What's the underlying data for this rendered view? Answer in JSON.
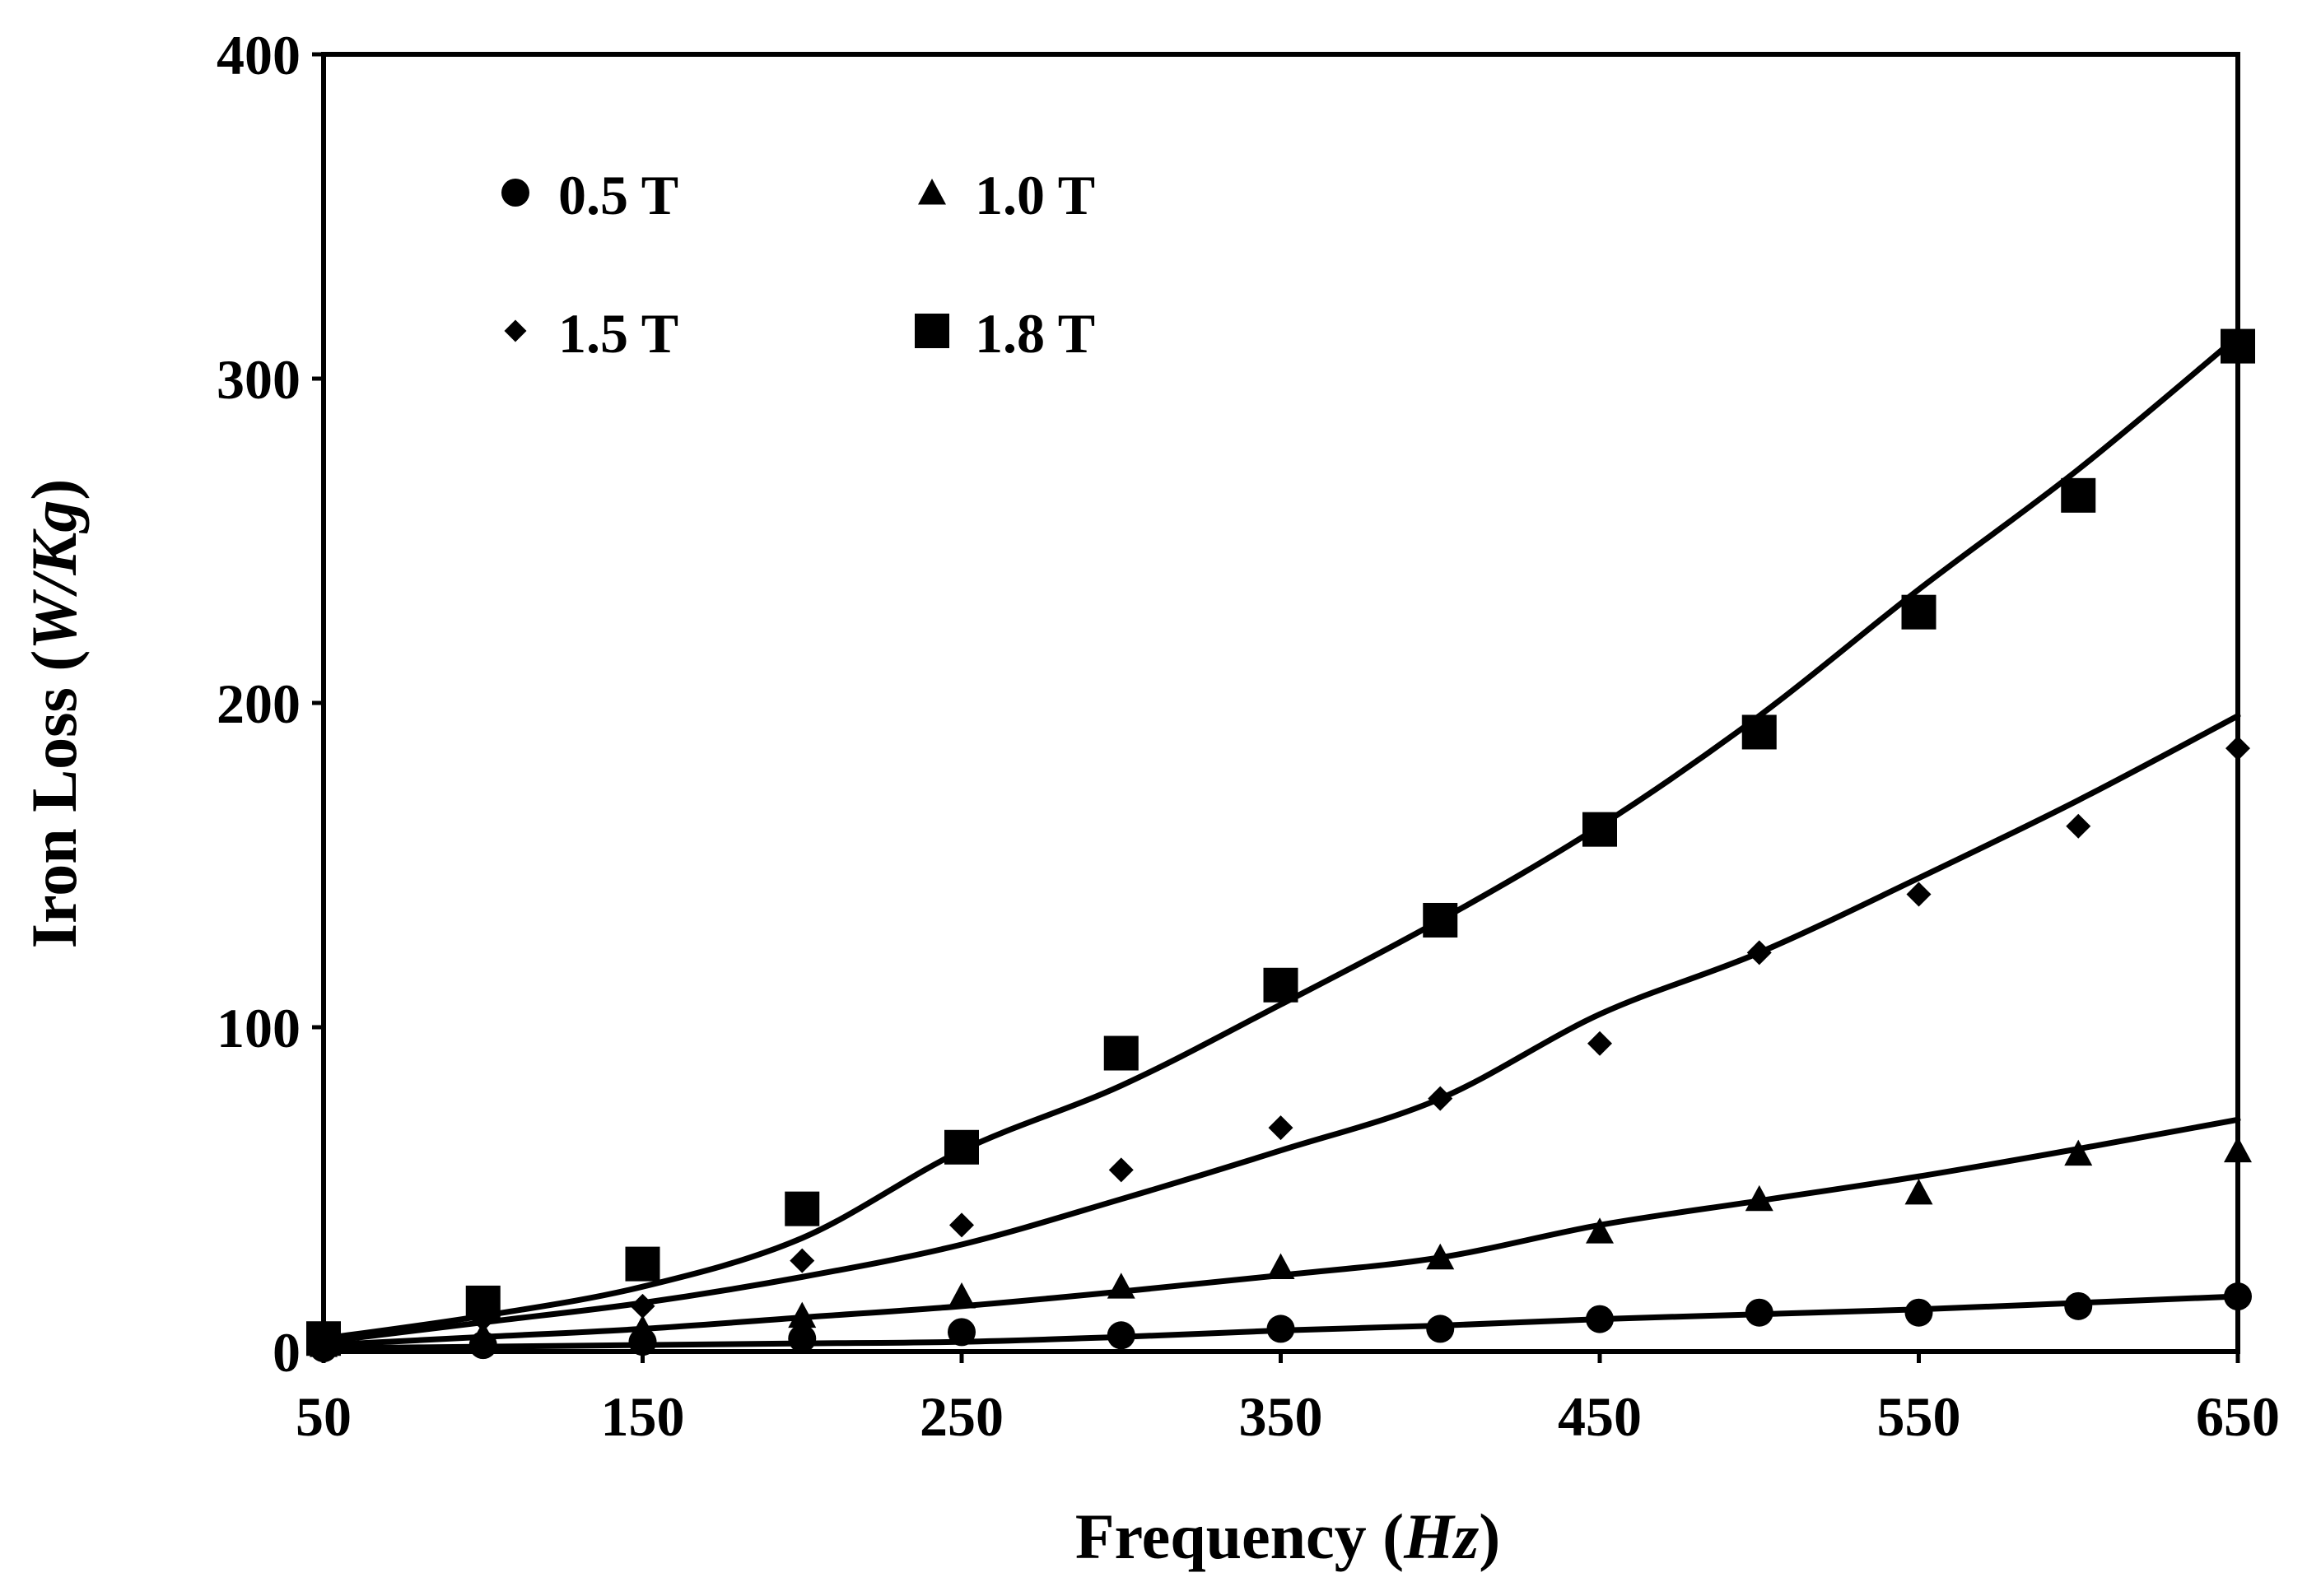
{
  "chart_data": {
    "type": "scatter",
    "title": "",
    "xlabel": "Frequency",
    "xlabel_unit": "Hz",
    "ylabel": "Iron Loss",
    "ylabel_unit": "W/Kg",
    "xlim": [
      50,
      650
    ],
    "ylim": [
      0,
      400
    ],
    "x_ticks": [
      50,
      150,
      250,
      350,
      450,
      550,
      650
    ],
    "y_ticks": [
      0,
      100,
      200,
      300,
      400
    ],
    "grid": false,
    "legend_position": "top-left",
    "x": [
      50,
      100,
      150,
      200,
      250,
      300,
      350,
      400,
      450,
      500,
      550,
      600,
      650
    ],
    "series": [
      {
        "name": "0.5 T",
        "marker": "circle",
        "values": [
          1,
          2,
          3,
          4,
          6,
          5,
          7,
          7,
          10,
          12,
          12,
          14,
          17
        ],
        "fit": [
          1,
          1.5,
          2,
          2.5,
          3,
          4.5,
          6.5,
          8,
          10,
          11.5,
          13,
          15,
          17
        ]
      },
      {
        "name": "1.0 T",
        "marker": "triangle",
        "values": [
          2,
          5,
          7,
          11,
          17,
          20,
          26,
          29,
          37,
          47,
          49,
          61,
          62
        ],
        "fit": [
          2,
          4.5,
          7,
          10.5,
          14,
          18.5,
          23.5,
          29,
          39,
          46.5,
          54,
          62.5,
          71.5
        ]
      },
      {
        "name": "1.5 T",
        "marker": "diamond",
        "values": [
          3,
          10,
          14,
          28,
          39,
          56,
          69,
          78,
          95,
          123,
          141,
          162,
          186
        ],
        "fit": [
          3,
          9,
          15,
          23,
          33,
          47,
          62,
          78,
          104,
          123,
          146,
          170,
          196
        ]
      },
      {
        "name": "1.8 T",
        "marker": "square",
        "values": [
          4,
          15,
          27,
          44,
          63,
          92,
          113,
          133,
          161,
          191,
          228,
          264,
          310
        ]
      }
    ],
    "series_fit_18": [
      4,
      11,
      20,
      35,
      62,
      82,
      107,
      133,
      162,
      196,
      235,
      272,
      313
    ],
    "colors": {
      "marker": "#000000",
      "line": "#000000",
      "axis": "#000000",
      "background": "#ffffff"
    }
  }
}
